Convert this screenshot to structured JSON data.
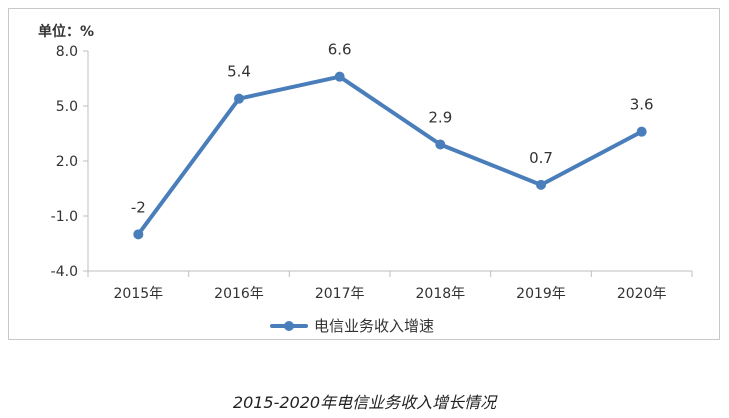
{
  "caption": "2015-2020年电信业务收入增长情况",
  "chart_data": {
    "type": "line",
    "unit_label": "单位：%",
    "categories": [
      "2015年",
      "2016年",
      "2017年",
      "2018年",
      "2019年",
      "2020年"
    ],
    "series": [
      {
        "name": "电信业务收入增速",
        "values": [
          -2,
          5.4,
          6.6,
          2.9,
          0.7,
          3.6
        ],
        "data_labels": [
          "-2",
          "5.4",
          "6.6",
          "2.9",
          "0.7",
          "3.6"
        ],
        "color": "#4a7ebb"
      }
    ],
    "ylim": [
      -4.0,
      8.0
    ],
    "y_ticks": [
      "-4.0",
      "-1.0",
      "2.0",
      "5.0",
      "8.0"
    ],
    "legend_position": "bottom",
    "grid": false,
    "axis_color": "#bfbfbf"
  }
}
